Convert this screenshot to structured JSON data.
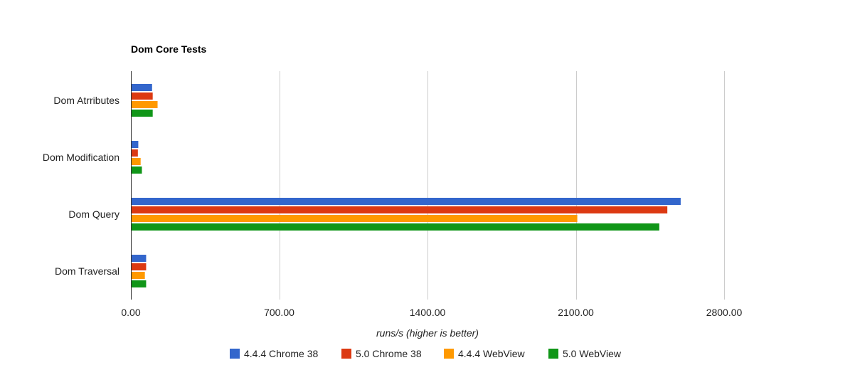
{
  "chart_data": {
    "type": "bar",
    "orientation": "horizontal",
    "title": "Dom Core Tests",
    "xlabel": "runs/s (higher is better)",
    "ylabel": "",
    "xlim": [
      0,
      3150
    ],
    "xticks": [
      0,
      700,
      1400,
      2100,
      2800
    ],
    "xtick_labels": [
      "0.00",
      "700.00",
      "1400.00",
      "2100.00",
      "2800.00"
    ],
    "grid": true,
    "legend_position": "bottom",
    "categories": [
      "Dom Atrributes",
      "Dom Modification",
      "Dom Query",
      "Dom Traversal"
    ],
    "series": [
      {
        "name": "4.4.4 Chrome 38",
        "color": "#3366cc",
        "values": [
          100,
          35,
          2595,
          72
        ]
      },
      {
        "name": "5.0 Chrome 38",
        "color": "#dc3912",
        "values": [
          103,
          33,
          2532,
          72
        ]
      },
      {
        "name": "4.4.4 WebView",
        "color": "#ff9900",
        "values": [
          126,
          46,
          2107,
          66
        ]
      },
      {
        "name": "5.0 WebView",
        "color": "#109618",
        "values": [
          103,
          52,
          2494,
          72
        ]
      }
    ]
  }
}
